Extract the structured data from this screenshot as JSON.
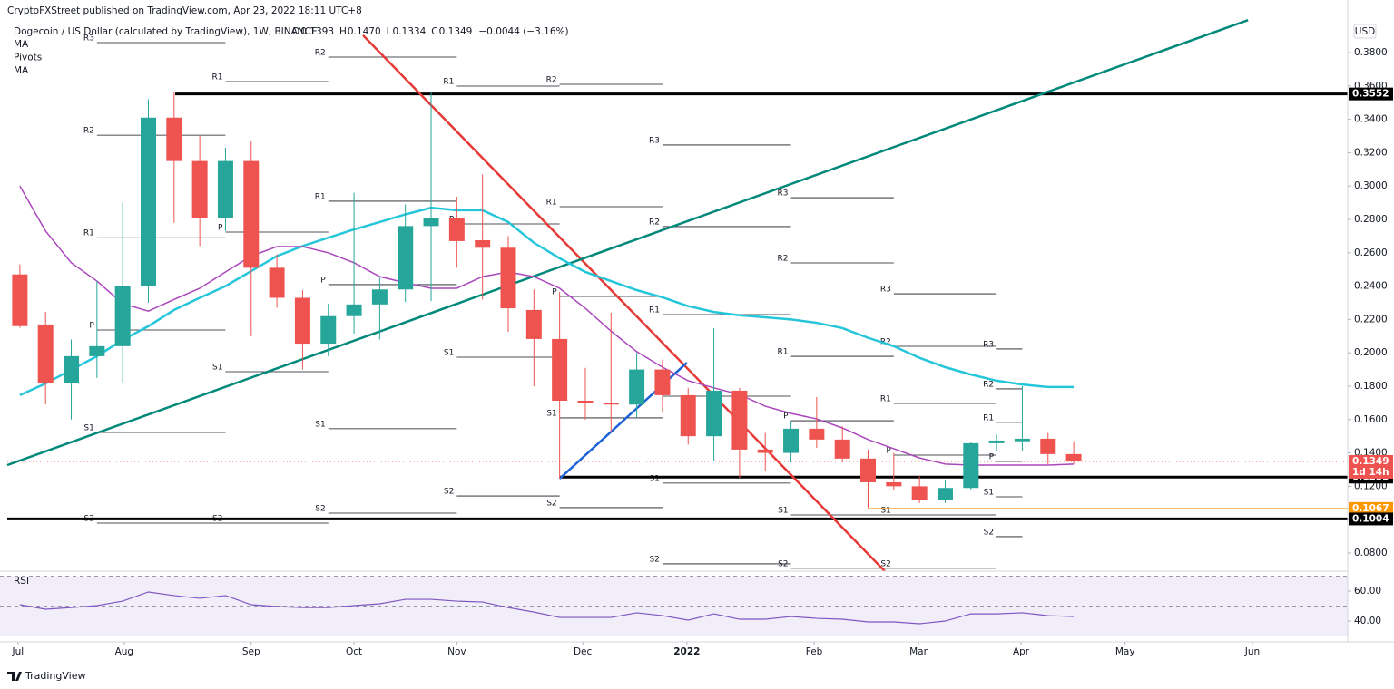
{
  "chart_data": {
    "type": "candlestick",
    "published": "CryptoFXStreet published on TradingView.com, Apr 23, 2022 18:11 UTC+8",
    "title": "Dogecoin / US Dollar (calculated by TradingView), 1W, BINANCE",
    "ohlc_header": [
      {
        "label": "O",
        "value": "0.1393"
      },
      {
        "label": "H",
        "value": "0.1470"
      },
      {
        "label": "L",
        "value": "0.1334"
      },
      {
        "label": "C",
        "value": "0.1349"
      },
      {
        "label": "",
        "value": "−0.0044 (−3.16%)"
      }
    ],
    "indicators": [
      "MA",
      "Pivots",
      "MA"
    ],
    "currency": "USD",
    "countdown": "1d 14h",
    "brand": "TradingView",
    "categories": [
      null,
      null,
      null,
      null,
      null,
      null,
      null,
      null,
      null,
      null,
      null,
      null,
      null,
      null,
      null,
      null,
      null,
      null,
      null,
      null,
      null,
      null,
      null,
      null,
      null,
      null,
      null,
      null,
      null,
      null,
      null,
      null,
      null,
      null,
      null,
      null,
      null,
      null,
      null,
      null,
      null,
      null
    ],
    "xlim": [
      -0.49,
      51.66
    ],
    "xticks": [
      {
        "value": -0.07,
        "label": "Jul"
      },
      {
        "value": 4.06,
        "label": "Aug"
      },
      {
        "value": 9.0,
        "label": "Sep"
      },
      {
        "value": 13.0,
        "label": "Oct"
      },
      {
        "value": 17.0,
        "label": "Nov"
      },
      {
        "value": 21.9,
        "label": "Dec"
      },
      {
        "value": 25.95,
        "label": "2022"
      },
      {
        "value": 30.9,
        "label": "Feb"
      },
      {
        "value": 34.96,
        "label": "Mar"
      },
      {
        "value": 38.95,
        "label": "Apr"
      },
      {
        "value": 43.0,
        "label": "May"
      },
      {
        "value": 47.95,
        "label": "Jun"
      }
    ],
    "ylim": [
      0.0702,
      0.4061
    ],
    "yticks": [
      {
        "value": 0.08,
        "label": "0.0800"
      },
      {
        "value": 0.1,
        "label": "0.1000"
      },
      {
        "value": 0.12,
        "label": "0.1200"
      },
      {
        "value": 0.14,
        "label": "0.1400"
      },
      {
        "value": 0.16,
        "label": "0.1600"
      },
      {
        "value": 0.18,
        "label": "0.1800"
      },
      {
        "value": 0.2,
        "label": "0.2000"
      },
      {
        "value": 0.22,
        "label": "0.2200"
      },
      {
        "value": 0.24,
        "label": "0.2400"
      },
      {
        "value": 0.26,
        "label": "0.2600"
      },
      {
        "value": 0.28,
        "label": "0.2800"
      },
      {
        "value": 0.3,
        "label": "0.3000"
      },
      {
        "value": 0.32,
        "label": "0.3200"
      },
      {
        "value": 0.34,
        "label": "0.3400"
      },
      {
        "value": 0.36,
        "label": "0.3600"
      },
      {
        "value": 0.38,
        "label": "0.3800"
      }
    ],
    "up_color": "#26a69a",
    "down_color": "#ef5350",
    "open": [
      0.247,
      0.217,
      0.1816,
      0.198,
      0.204,
      0.24,
      0.341,
      0.315,
      0.281,
      0.315,
      0.251,
      0.233,
      0.2055,
      0.222,
      0.229,
      0.238,
      0.276,
      0.2806,
      0.2675,
      0.263,
      0.2257,
      0.2083,
      0.1713,
      0.17,
      0.169,
      0.19,
      0.1746,
      0.15,
      0.1773,
      0.142,
      0.14,
      0.1545,
      0.148,
      0.1366,
      0.1224,
      0.12,
      0.1115,
      0.119,
      0.1458,
      0.147,
      0.1485,
      0.1393
    ],
    "high": [
      0.253,
      0.2246,
      0.208,
      0.243,
      0.29,
      0.352,
      0.356,
      0.33,
      0.323,
      0.327,
      0.259,
      0.2376,
      0.2295,
      0.296,
      0.245,
      0.289,
      0.356,
      0.2936,
      0.307,
      0.27,
      0.238,
      0.2365,
      0.191,
      0.224,
      0.2,
      0.196,
      0.179,
      0.2148,
      0.179,
      0.152,
      0.1594,
      0.1735,
      0.156,
      0.142,
      0.14,
      0.126,
      0.1235,
      0.1463,
      0.151,
      0.18,
      0.152,
      0.147
    ],
    "low": [
      0.215,
      0.169,
      0.16,
      0.185,
      0.182,
      0.23,
      0.278,
      0.264,
      0.273,
      0.21,
      0.227,
      0.19,
      0.198,
      0.2115,
      0.208,
      0.2305,
      0.231,
      0.251,
      0.232,
      0.2126,
      0.18,
      0.1246,
      0.16,
      0.153,
      0.1615,
      0.164,
      0.145,
      0.1354,
      0.125,
      0.129,
      0.1344,
      0.143,
      0.1343,
      0.107,
      0.118,
      0.11,
      0.11,
      0.118,
      0.141,
      0.1414,
      0.1333,
      0.1334
    ],
    "close": [
      0.216,
      0.1816,
      0.198,
      0.204,
      0.24,
      0.341,
      0.315,
      0.281,
      0.315,
      0.251,
      0.233,
      0.2055,
      0.222,
      0.229,
      0.238,
      0.276,
      0.2806,
      0.267,
      0.263,
      0.2267,
      0.2083,
      0.1713,
      0.17,
      0.169,
      0.19,
      0.1746,
      0.15,
      0.1773,
      0.142,
      0.14,
      0.1545,
      0.148,
      0.1366,
      0.1224,
      0.12,
      0.1115,
      0.119,
      0.1458,
      0.1474,
      0.1485,
      0.1393,
      0.1349
    ],
    "series": [
      {
        "name": "MA",
        "color": "#26c6da",
        "values": [
          0.1746,
          0.1816,
          0.1898,
          0.198,
          0.2077,
          0.216,
          0.2257,
          0.233,
          0.24,
          0.249,
          0.258,
          0.264,
          0.269,
          0.274,
          0.2784,
          0.283,
          0.287,
          0.2855,
          0.2855,
          0.2784,
          0.266,
          0.2567,
          0.2485,
          0.243,
          0.2376,
          0.2333,
          0.228,
          0.2245,
          0.2225,
          0.2213,
          0.22,
          0.218,
          0.2148,
          0.209,
          0.204,
          0.197,
          0.1914,
          0.187,
          0.1833,
          0.181,
          0.1795,
          0.1795
        ]
      },
      {
        "name": "MA",
        "color": "#ab47bc",
        "values": [
          0.3,
          0.273,
          0.254,
          0.243,
          0.2295,
          0.225,
          0.232,
          0.2387,
          0.2485,
          0.258,
          0.2637,
          0.2637,
          0.26,
          0.254,
          0.2457,
          0.242,
          0.2387,
          0.2387,
          0.2457,
          0.2485,
          0.2457,
          0.2387,
          0.2267,
          0.213,
          0.2007,
          0.1914,
          0.1833,
          0.179,
          0.175,
          0.168,
          0.1637,
          0.1604,
          0.155,
          0.148,
          0.1425,
          0.137,
          0.1333,
          0.1327,
          0.1327,
          0.1327,
          0.1327,
          0.1333
        ]
      }
    ],
    "trendlines": [
      {
        "color": "#e53935",
        "x": [
          13.35,
          33.65
        ],
        "y": [
          0.3904,
          0.0691
        ]
      },
      {
        "color": "#00897b",
        "x": [
          -0.49,
          47.78
        ],
        "y": [
          0.1327,
          0.3995
        ]
      },
      {
        "color": "#1e63d6",
        "x": [
          21.0,
          25.95
        ],
        "y": [
          0.1246,
          0.1941
        ]
      }
    ],
    "hlines": [
      {
        "value": 0.3552,
        "x0": 6.04,
        "color": "#000000",
        "width": 3
      },
      {
        "value": 0.1255,
        "x0": 21.0,
        "color": "#000000",
        "width": 3
      },
      {
        "value": 0.1067,
        "x0": 33.0,
        "color": "#ff9800",
        "width": 1
      },
      {
        "value": 0.1004,
        "x0": -0.49,
        "color": "#000000",
        "width": 3
      }
    ],
    "pivots": [
      {
        "x0": 3,
        "x1": 8,
        "levels": [
          {
            "label": "R3",
            "value": 0.386
          },
          {
            "label": "R2",
            "value": 0.3305
          },
          {
            "label": "R1",
            "value": 0.269
          },
          {
            "label": "P",
            "value": 0.2137
          },
          {
            "label": "S1",
            "value": 0.1523
          },
          {
            "label": "S2",
            "value": 0.0979
          }
        ]
      },
      {
        "x0": 8,
        "x1": 12,
        "levels": [
          {
            "label": "R1",
            "value": 0.3626
          },
          {
            "label": "P",
            "value": 0.2724
          },
          {
            "label": "S1",
            "value": 0.1887
          },
          {
            "label": "S2",
            "value": 0.0979
          }
        ]
      },
      {
        "x0": 12,
        "x1": 17,
        "levels": [
          {
            "label": "R2",
            "value": 0.3773
          },
          {
            "label": "R1",
            "value": 0.2909
          },
          {
            "label": "P",
            "value": 0.2409
          },
          {
            "label": "S1",
            "value": 0.1545
          },
          {
            "label": "S2",
            "value": 0.1039
          }
        ]
      },
      {
        "x0": 17,
        "x1": 21,
        "levels": [
          {
            "label": "R1",
            "value": 0.3599
          },
          {
            "label": "P",
            "value": 0.2773
          },
          {
            "label": "S1",
            "value": 0.1974
          },
          {
            "label": "S2",
            "value": 0.1142
          }
        ]
      },
      {
        "x0": 21,
        "x1": 25,
        "levels": [
          {
            "label": "R2",
            "value": 0.361
          },
          {
            "label": "R1",
            "value": 0.2876
          },
          {
            "label": "P",
            "value": 0.2338
          },
          {
            "label": "S1",
            "value": 0.161
          },
          {
            "label": "S2",
            "value": 0.1072
          }
        ]
      },
      {
        "x0": 25,
        "x1": 30,
        "levels": [
          {
            "label": "R3",
            "value": 0.3246
          },
          {
            "label": "R2",
            "value": 0.2757
          },
          {
            "label": "R1",
            "value": 0.2229
          },
          {
            "label": "P",
            "value": 0.174
          },
          {
            "label": "S1",
            "value": 0.1219
          },
          {
            "label": "S2",
            "value": 0.0735
          }
        ]
      },
      {
        "x0": 30,
        "x1": 34,
        "levels": [
          {
            "label": "R3",
            "value": 0.293
          },
          {
            "label": "R2",
            "value": 0.2539
          },
          {
            "label": "R1",
            "value": 0.1979
          },
          {
            "label": "P",
            "value": 0.1593
          },
          {
            "label": "S1",
            "value": 0.1028
          },
          {
            "label": "S2",
            "value": 0.0708
          }
        ]
      },
      {
        "x0": 34,
        "x1": 38,
        "levels": [
          {
            "label": "R3",
            "value": 0.2354
          },
          {
            "label": "R2",
            "value": 0.2039
          },
          {
            "label": "R1",
            "value": 0.1697
          },
          {
            "label": "P",
            "value": 0.1387
          },
          {
            "label": "S1",
            "value": 0.1028
          },
          {
            "label": "S2",
            "value": 0.0708
          }
        ]
      },
      {
        "x0": 38,
        "x1": 39,
        "levels": [
          {
            "label": "R3",
            "value": 0.2023
          },
          {
            "label": "R2",
            "value": 0.1784
          },
          {
            "label": "R1",
            "value": 0.1583
          },
          {
            "label": "P",
            "value": 0.1349
          },
          {
            "label": "S1",
            "value": 0.1137
          },
          {
            "label": "S2",
            "value": 0.0898
          }
        ]
      }
    ],
    "rsi": {
      "name": "RSI",
      "color": "#7e57c2",
      "values": [
        50.9,
        47.9,
        49,
        50.3,
        53.3,
        59.4,
        57,
        55.2,
        57,
        50.9,
        49.7,
        49,
        49,
        50.3,
        51.5,
        54.5,
        54.5,
        53.3,
        52.7,
        49,
        46,
        42.4,
        42.4,
        42.4,
        45.5,
        43.6,
        40.6,
        44.8,
        41.2,
        41.2,
        43,
        41.8,
        41.2,
        39.4,
        39.4,
        38.2,
        40,
        44.8,
        44.8,
        45.5,
        43.6,
        43
      ],
      "ylim": [
        27.9,
        72.1
      ],
      "yticks": [
        {
          "value": 40,
          "label": "40.00"
        },
        {
          "value": 60,
          "label": "60.00"
        }
      ],
      "levels": [
        30,
        50,
        70
      ]
    }
  }
}
